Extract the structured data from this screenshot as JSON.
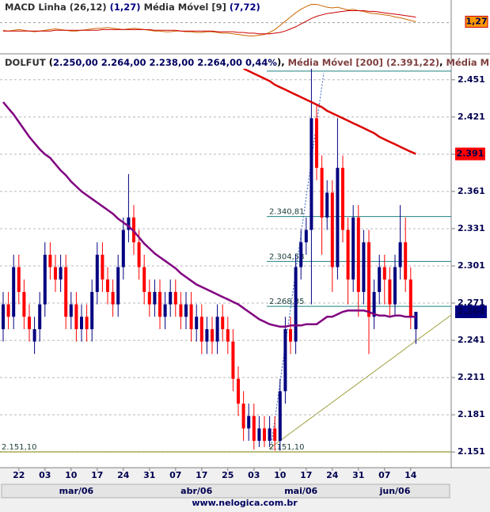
{
  "chart_data": [
    {
      "type": "line",
      "header": [
        "MACD Linha (26,12)",
        "(1,27)",
        "Média Móvel [9]",
        "(7,72)"
      ],
      "ylim": [
        -40,
        30
      ],
      "yticks": [
        0
      ],
      "grid": true,
      "value_box": "1,27",
      "series": [
        {
          "name": "MACD Linha",
          "color": "#cc6600",
          "values": [
            -11,
            -12,
            -11,
            -10,
            -11,
            -12,
            -13,
            -12,
            -11,
            -10,
            -9,
            -10,
            -11,
            -12,
            -12,
            -11,
            -10,
            -9,
            -8,
            -8,
            -7,
            -8,
            -9,
            -10,
            -9,
            -8,
            -9,
            -10,
            -11,
            -12,
            -12,
            -13,
            -13,
            -12,
            -12,
            -13,
            -13,
            -14,
            -14,
            -13,
            -13,
            -14,
            -15,
            -15,
            -16,
            -17,
            -18,
            -19,
            -19,
            -18,
            -17,
            -14,
            -10,
            -4,
            2,
            8,
            14,
            19,
            23,
            26,
            26,
            24,
            22,
            21,
            22,
            20,
            18,
            19,
            17,
            16,
            14,
            13,
            12,
            11,
            10,
            8,
            7,
            5,
            3,
            1.27
          ]
        },
        {
          "name": "Média Móvel",
          "color": "#cc0000",
          "values": [
            -12,
            -12,
            -12,
            -12,
            -12,
            -12,
            -12,
            -12,
            -12,
            -12,
            -11,
            -11,
            -11,
            -11,
            -11,
            -11,
            -11,
            -11,
            -11,
            -10,
            -10,
            -10,
            -10,
            -10,
            -10,
            -10,
            -10,
            -10,
            -10,
            -11,
            -11,
            -11,
            -11,
            -11,
            -12,
            -12,
            -12,
            -12,
            -12,
            -12,
            -12,
            -13,
            -13,
            -13,
            -13,
            -14,
            -14,
            -15,
            -15,
            -16,
            -16,
            -16,
            -15,
            -14,
            -12,
            -9,
            -6,
            -2,
            2,
            6,
            9,
            11,
            13,
            14,
            15,
            16,
            17,
            17,
            17,
            17,
            16,
            16,
            15,
            14,
            13,
            12,
            11,
            10,
            9,
            7.72
          ]
        }
      ]
    },
    {
      "type": "candlestick",
      "symbol": "DOLFUT",
      "header_labels": [
        "2.250,00",
        "2.264,00",
        "2.238,00",
        "2.264,00",
        "0,44%"
      ],
      "ylim": [
        2139,
        2470
      ],
      "yticks": [
        {
          "value": 2451,
          "label": "2.451"
        },
        {
          "value": 2421,
          "label": "2.421"
        },
        {
          "value": 2391,
          "label": "2.391"
        },
        {
          "value": 2361,
          "label": "2.361"
        },
        {
          "value": 2331,
          "label": "2.331"
        },
        {
          "value": 2301,
          "label": "2.301"
        },
        {
          "value": 2271,
          "label": "2.271"
        },
        {
          "value": 2241,
          "label": "2.241"
        },
        {
          "value": 2211,
          "label": "2.211"
        },
        {
          "value": 2181,
          "label": "2.181"
        },
        {
          "value": 2151,
          "label": "2.151"
        }
      ],
      "grid": true,
      "xticks": [
        {
          "value": 3,
          "label": "22"
        },
        {
          "value": 8,
          "label": "03"
        },
        {
          "value": 13,
          "label": "10"
        },
        {
          "value": 18,
          "label": "17"
        },
        {
          "value": 23,
          "label": "24"
        },
        {
          "value": 28,
          "label": "31"
        },
        {
          "value": 33,
          "label": "07"
        },
        {
          "value": 38,
          "label": "17"
        },
        {
          "value": 43,
          "label": "25"
        },
        {
          "value": 48,
          "label": "03"
        },
        {
          "value": 53,
          "label": "10"
        },
        {
          "value": 58,
          "label": "17"
        },
        {
          "value": 63,
          "label": "24"
        },
        {
          "value": 68,
          "label": "31"
        },
        {
          "value": 73,
          "label": "07"
        },
        {
          "value": 78,
          "label": "14"
        }
      ],
      "months": [
        {
          "value": 14,
          "label": "mar/06"
        },
        {
          "value": 37,
          "label": "abr/06"
        },
        {
          "value": 57,
          "label": "mai/06"
        },
        {
          "value": 75,
          "label": "jun/06"
        }
      ],
      "up_color": "#000080",
      "down_color": "#ff0000",
      "open": [
        2250,
        2270,
        2260,
        2300,
        2280,
        2260,
        2240,
        2250,
        2270,
        2310,
        2300,
        2290,
        2300,
        2260,
        2270,
        2250,
        2260,
        2250,
        2280,
        2310,
        2290,
        2280,
        2270,
        2300,
        2330,
        2340,
        2320,
        2300,
        2280,
        2270,
        2280,
        2260,
        2270,
        2280,
        2270,
        2260,
        2270,
        2250,
        2260,
        2240,
        2250,
        2240,
        2260,
        2250,
        2240,
        2210,
        2190,
        2170,
        2180,
        2160,
        2170,
        2160,
        2170,
        2160,
        2200,
        2250,
        2240,
        2300,
        2320,
        2330,
        2420,
        2380,
        2340,
        2360,
        2300,
        2380,
        2330,
        2290,
        2340,
        2280,
        2320,
        2260,
        2280,
        2300,
        2290,
        2270,
        2300,
        2320,
        2290,
        2250
      ],
      "high": [
        2280,
        2280,
        2310,
        2310,
        2290,
        2270,
        2260,
        2280,
        2320,
        2320,
        2310,
        2310,
        2310,
        2280,
        2280,
        2270,
        2270,
        2290,
        2320,
        2320,
        2300,
        2290,
        2310,
        2340,
        2375,
        2350,
        2330,
        2310,
        2290,
        2290,
        2290,
        2280,
        2290,
        2290,
        2280,
        2280,
        2280,
        2270,
        2270,
        2260,
        2260,
        2270,
        2270,
        2260,
        2250,
        2220,
        2200,
        2190,
        2190,
        2180,
        2180,
        2180,
        2180,
        2210,
        2260,
        2260,
        2310,
        2330,
        2340,
        2460,
        2430,
        2390,
        2370,
        2370,
        2420,
        2390,
        2340,
        2350,
        2350,
        2330,
        2330,
        2290,
        2310,
        2310,
        2300,
        2310,
        2350,
        2340,
        2300,
        2264
      ],
      "low": [
        2240,
        2250,
        2250,
        2270,
        2250,
        2240,
        2230,
        2240,
        2260,
        2290,
        2280,
        2280,
        2250,
        2250,
        2240,
        2240,
        2240,
        2240,
        2270,
        2280,
        2270,
        2260,
        2260,
        2290,
        2320,
        2310,
        2290,
        2270,
        2260,
        2260,
        2250,
        2250,
        2260,
        2260,
        2250,
        2250,
        2240,
        2240,
        2230,
        2230,
        2230,
        2230,
        2240,
        2230,
        2200,
        2180,
        2160,
        2160,
        2153,
        2155,
        2155,
        2155,
        2152,
        2152,
        2190,
        2230,
        2230,
        2290,
        2310,
        2270,
        2370,
        2310,
        2330,
        2280,
        2290,
        2320,
        2270,
        2280,
        2260,
        2270,
        2230,
        2250,
        2270,
        2270,
        2260,
        2260,
        2290,
        2280,
        2250,
        2238
      ],
      "close": [
        2270,
        2260,
        2300,
        2280,
        2260,
        2250,
        2250,
        2270,
        2310,
        2300,
        2290,
        2300,
        2260,
        2270,
        2250,
        2260,
        2250,
        2280,
        2310,
        2290,
        2280,
        2270,
        2300,
        2330,
        2340,
        2320,
        2300,
        2280,
        2270,
        2280,
        2260,
        2270,
        2280,
        2270,
        2260,
        2270,
        2250,
        2260,
        2240,
        2250,
        2240,
        2260,
        2250,
        2240,
        2210,
        2190,
        2170,
        2180,
        2160,
        2170,
        2160,
        2170,
        2160,
        2200,
        2250,
        2240,
        2300,
        2320,
        2330,
        2420,
        2380,
        2340,
        2360,
        2300,
        2380,
        2330,
        2290,
        2340,
        2280,
        2320,
        2260,
        2280,
        2300,
        2290,
        2270,
        2300,
        2320,
        2290,
        2260,
        2264
      ],
      "close_box": "2.264",
      "lines": [
        {
          "name": "Média Móvel [200] (2.391,22)",
          "color": "#dd0000",
          "box": "2.391",
          "values": [
            null,
            null,
            null,
            null,
            null,
            null,
            null,
            null,
            null,
            null,
            null,
            null,
            null,
            null,
            null,
            null,
            null,
            null,
            null,
            null,
            null,
            null,
            null,
            null,
            null,
            null,
            null,
            null,
            null,
            null,
            null,
            null,
            null,
            null,
            null,
            null,
            null,
            null,
            null,
            null,
            null,
            null,
            null,
            null,
            null,
            null,
            2460,
            2458,
            2456,
            2454,
            2452,
            2450,
            2447,
            2445,
            2443,
            2441,
            2439,
            2437,
            2435,
            2433,
            2431,
            2429,
            2426,
            2424,
            2422,
            2420,
            2418,
            2416,
            2414,
            2412,
            2410,
            2408,
            2405,
            2403,
            2401,
            2399,
            2397,
            2395,
            2393,
            2391.22
          ]
        },
        {
          "name": "Média M",
          "color": "#800080",
          "values": [
            2433,
            2428,
            2423,
            2417,
            2411,
            2405,
            2400,
            2395,
            2391,
            2388,
            2383,
            2378,
            2374,
            2369,
            2365,
            2361,
            2358,
            2355,
            2352,
            2349,
            2346,
            2343,
            2339,
            2336,
            2333,
            2329,
            2324,
            2319,
            2315,
            2311,
            2308,
            2305,
            2302,
            2299,
            2295,
            2292,
            2289,
            2286,
            2284,
            2282,
            2280,
            2278,
            2276,
            2274,
            2272,
            2270,
            2267,
            2264,
            2261,
            2258,
            2256,
            2254,
            2253,
            2252,
            2252,
            2253,
            2253,
            2253,
            2254,
            2254,
            2254,
            2257,
            2260,
            2260,
            2262,
            2264,
            2265,
            2265,
            2265,
            2265,
            2264,
            2262,
            2261,
            2261,
            2260,
            2261,
            2261,
            2260,
            2260,
            2260
          ]
        }
      ],
      "fib_levels": [
        {
          "value": 2151.1,
          "label": "2.151,10"
        },
        {
          "value": 2268.35,
          "label": "2.268,35"
        },
        {
          "value": 2304.58,
          "label": "2.304,58"
        },
        {
          "value": 2340.81,
          "label": "2.340,81"
        },
        {
          "value": 2458
        }
      ],
      "footer": "www.nelogica.com.br"
    }
  ]
}
